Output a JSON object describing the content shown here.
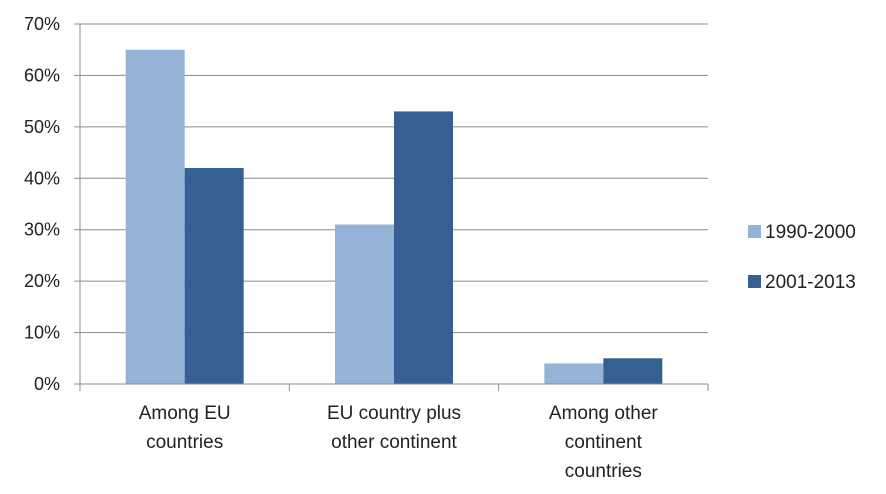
{
  "chart_data": {
    "type": "bar",
    "categories": [
      [
        "Among EU",
        "countries"
      ],
      [
        "EU country plus",
        "other continent"
      ],
      [
        "Among other",
        "continent",
        "countries"
      ]
    ],
    "series": [
      {
        "name": "1990-2000",
        "values": [
          65,
          31,
          4
        ],
        "color": "#95b3d7"
      },
      {
        "name": "2001-2013",
        "values": [
          42,
          53,
          5
        ],
        "color": "#366092"
      }
    ],
    "ylim": [
      0,
      70
    ],
    "yticks": [
      "0%",
      "10%",
      "20%",
      "30%",
      "40%",
      "50%",
      "60%",
      "70%"
    ],
    "grid": true,
    "legend_position": "right",
    "title": "",
    "xlabel": "",
    "ylabel": ""
  }
}
